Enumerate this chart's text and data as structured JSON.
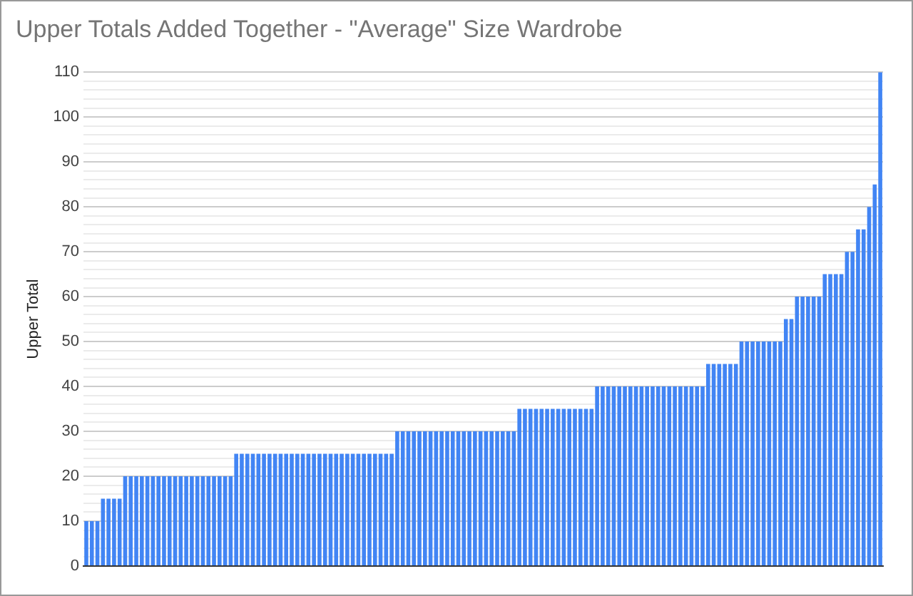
{
  "chart_data": {
    "type": "bar",
    "title": "Upper Totals Added Together - \"Average\" Size Wardrobe",
    "ylabel": "Upper Total",
    "color": "#4285f4",
    "categories": [
      null,
      null,
      null,
      null,
      null,
      null,
      null,
      null,
      null,
      null,
      null,
      null,
      null,
      null,
      null,
      null,
      null,
      null,
      null,
      null,
      null,
      null,
      null,
      null,
      null,
      null,
      null,
      null,
      null,
      null,
      null,
      null,
      null,
      null,
      null,
      null,
      null,
      null,
      null,
      null,
      null,
      null,
      null,
      null,
      null,
      null,
      null,
      null,
      null,
      null,
      null,
      null,
      null,
      null,
      null,
      null,
      null,
      null,
      null,
      null,
      null,
      null,
      null,
      null,
      null,
      null,
      null,
      null,
      null,
      null,
      null,
      null,
      null,
      null,
      null,
      null,
      null,
      null,
      null,
      null,
      null,
      null,
      null,
      null,
      null,
      null,
      null,
      null,
      null,
      null,
      null,
      null,
      null,
      null,
      null,
      null,
      null,
      null,
      null,
      null,
      null,
      null,
      null,
      null,
      null,
      null,
      null,
      null,
      null,
      null,
      null,
      null,
      null,
      null,
      null,
      null,
      null,
      null,
      null,
      null,
      null,
      null,
      null,
      null,
      null,
      null,
      null,
      null,
      null,
      null,
      null,
      null,
      null,
      null,
      null,
      null,
      null,
      null,
      null,
      null,
      null,
      null,
      null,
      null
    ],
    "values": [
      10,
      10,
      10,
      15,
      15,
      15,
      15,
      20,
      20,
      20,
      20,
      20,
      20,
      20,
      20,
      20,
      20,
      20,
      20,
      20,
      20,
      20,
      20,
      20,
      20,
      20,
      20,
      25,
      25,
      25,
      25,
      25,
      25,
      25,
      25,
      25,
      25,
      25,
      25,
      25,
      25,
      25,
      25,
      25,
      25,
      25,
      25,
      25,
      25,
      25,
      25,
      25,
      25,
      25,
      25,
      25,
      30,
      30,
      30,
      30,
      30,
      30,
      30,
      30,
      30,
      30,
      30,
      30,
      30,
      30,
      30,
      30,
      30,
      30,
      30,
      30,
      30,
      30,
      35,
      35,
      35,
      35,
      35,
      35,
      35,
      35,
      35,
      35,
      35,
      35,
      35,
      35,
      40,
      40,
      40,
      40,
      40,
      40,
      40,
      40,
      40,
      40,
      40,
      40,
      40,
      40,
      40,
      40,
      40,
      40,
      40,
      40,
      45,
      45,
      45,
      45,
      45,
      45,
      50,
      50,
      50,
      50,
      50,
      50,
      50,
      50,
      55,
      55,
      60,
      60,
      60,
      60,
      60,
      65,
      65,
      65,
      65,
      70,
      70,
      75,
      75,
      80,
      85,
      110
    ],
    "ylim": [
      0,
      110
    ],
    "yticks": [
      0,
      {
        "value": 2,
        "label": null
      },
      {
        "value": 4,
        "label": null
      },
      {
        "value": 6,
        "label": null
      },
      {
        "value": 8,
        "label": null
      },
      10,
      {
        "value": 12,
        "label": null
      },
      {
        "value": 14,
        "label": null
      },
      {
        "value": 16,
        "label": null
      },
      {
        "value": 18,
        "label": null
      },
      20,
      {
        "value": 22,
        "label": null
      },
      {
        "value": 24,
        "label": null
      },
      {
        "value": 26,
        "label": null
      },
      {
        "value": 28,
        "label": null
      },
      30,
      {
        "value": 32,
        "label": null
      },
      {
        "value": 34,
        "label": null
      },
      {
        "value": 36,
        "label": null
      },
      {
        "value": 38,
        "label": null
      },
      40,
      {
        "value": 42,
        "label": null
      },
      {
        "value": 44,
        "label": null
      },
      {
        "value": 46,
        "label": null
      },
      {
        "value": 48,
        "label": null
      },
      50,
      {
        "value": 52,
        "label": null
      },
      {
        "value": 54,
        "label": null
      },
      {
        "value": 56,
        "label": null
      },
      {
        "value": 58,
        "label": null
      },
      60,
      {
        "value": 62,
        "label": null
      },
      {
        "value": 64,
        "label": null
      },
      {
        "value": 66,
        "label": null
      },
      {
        "value": 68,
        "label": null
      },
      70,
      {
        "value": 72,
        "label": null
      },
      {
        "value": 74,
        "label": null
      },
      {
        "value": 76,
        "label": null
      },
      {
        "value": 78,
        "label": null
      },
      80,
      {
        "value": 82,
        "label": null
      },
      {
        "value": 84,
        "label": null
      },
      {
        "value": 86,
        "label": null
      },
      {
        "value": 88,
        "label": null
      },
      90,
      {
        "value": 92,
        "label": null
      },
      {
        "value": 94,
        "label": null
      },
      {
        "value": 96,
        "label": null
      },
      {
        "value": 98,
        "label": null
      },
      100,
      {
        "value": 102,
        "label": null
      },
      {
        "value": 104,
        "label": null
      },
      {
        "value": 106,
        "label": null
      },
      {
        "value": 108,
        "label": null
      },
      110
    ],
    "grid": "y"
  }
}
